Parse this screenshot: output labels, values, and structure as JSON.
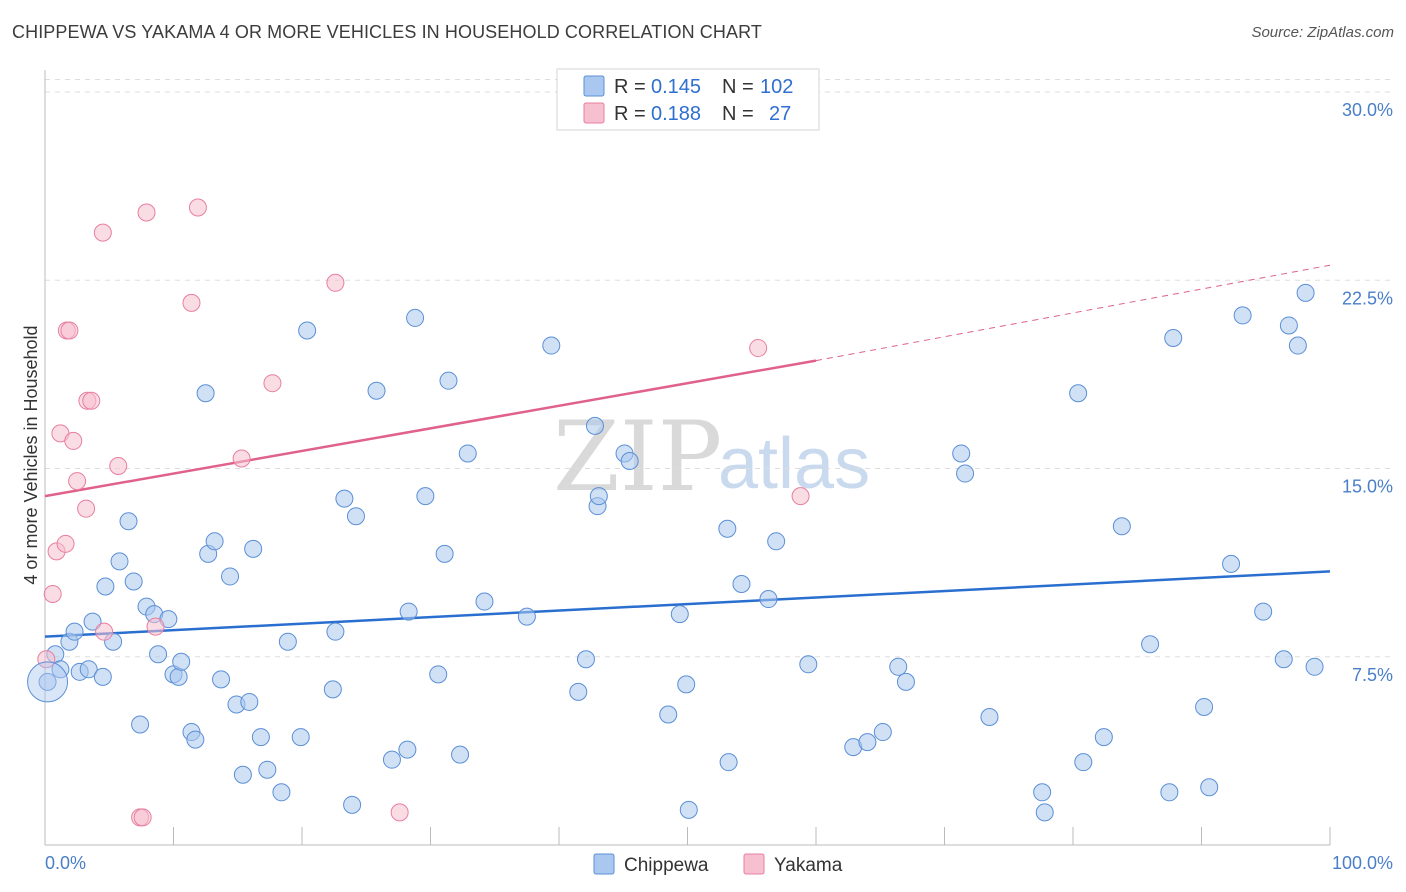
{
  "title": "CHIPPEWA VS YAKAMA 4 OR MORE VEHICLES IN HOUSEHOLD CORRELATION CHART",
  "source": "Source: ZipAtlas.com",
  "watermark": {
    "zip": "ZIP",
    "atlas": "atlas"
  },
  "colors": {
    "chippewa_fill": "#aac8ef",
    "chippewa_stroke": "#5b8fd6",
    "chippewa_line": "#2a6fd0",
    "yakama_fill": "#f6c0d0",
    "yakama_stroke": "#e87fa0",
    "yakama_line": "#e0618a",
    "tick_text": "#4a7fc8",
    "grid": "#dddddd"
  },
  "legend": {
    "rows": [
      {
        "r_label": "R =",
        "r_value": "0.145",
        "n_label": "N =",
        "n_value": "102"
      },
      {
        "r_label": "R =",
        "r_value": "0.188",
        "n_label": "N =",
        "n_value": "27"
      }
    ]
  },
  "bottom_legend": [
    "Chippewa",
    "Yakama"
  ],
  "chart_data": {
    "type": "scatter",
    "title": "CHIPPEWA VS YAKAMA 4 OR MORE VEHICLES IN HOUSEHOLD CORRELATION CHART",
    "xlabel": "",
    "ylabel": "4 or more Vehicles in Household",
    "xlim": [
      0,
      100
    ],
    "ylim": [
      0,
      30.5
    ],
    "x_tick_labels": [
      "0.0%",
      "100.0%"
    ],
    "y_ticks": [
      7.5,
      15.0,
      22.5,
      30.0
    ],
    "y_tick_labels": [
      "7.5%",
      "15.0%",
      "22.5%",
      "30.0%"
    ],
    "series": [
      {
        "name": "Chippewa",
        "r": 0.145,
        "n": 102,
        "trend": {
          "x0": 0,
          "y0": 8.3,
          "x1": 100,
          "y1": 10.9
        },
        "points": [
          [
            0.2,
            6.5
          ],
          [
            0.8,
            7.6
          ],
          [
            1.2,
            7.0
          ],
          [
            1.9,
            8.1
          ],
          [
            2.3,
            8.5
          ],
          [
            2.7,
            6.9
          ],
          [
            3.4,
            7.0
          ],
          [
            3.7,
            8.9
          ],
          [
            4.5,
            6.7
          ],
          [
            4.7,
            10.3
          ],
          [
            5.3,
            8.1
          ],
          [
            5.8,
            11.3
          ],
          [
            6.5,
            12.9
          ],
          [
            6.9,
            10.5
          ],
          [
            7.4,
            4.8
          ],
          [
            7.9,
            9.5
          ],
          [
            8.5,
            9.2
          ],
          [
            8.8,
            7.6
          ],
          [
            9.6,
            9.0
          ],
          [
            10.0,
            6.8
          ],
          [
            10.4,
            6.7
          ],
          [
            10.6,
            7.3
          ],
          [
            11.4,
            4.5
          ],
          [
            11.7,
            4.2
          ],
          [
            12.5,
            18.0
          ],
          [
            12.7,
            11.6
          ],
          [
            13.2,
            12.1
          ],
          [
            13.7,
            6.6
          ],
          [
            14.4,
            10.7
          ],
          [
            14.9,
            5.6
          ],
          [
            15.4,
            2.8
          ],
          [
            15.9,
            5.7
          ],
          [
            16.2,
            11.8
          ],
          [
            16.8,
            4.3
          ],
          [
            17.3,
            3.0
          ],
          [
            18.4,
            2.1
          ],
          [
            18.9,
            8.1
          ],
          [
            19.9,
            4.3
          ],
          [
            20.4,
            20.5
          ],
          [
            22.4,
            6.2
          ],
          [
            22.6,
            8.5
          ],
          [
            23.3,
            13.8
          ],
          [
            23.9,
            1.6
          ],
          [
            24.2,
            13.1
          ],
          [
            25.8,
            18.1
          ],
          [
            27.0,
            3.4
          ],
          [
            28.2,
            3.8
          ],
          [
            28.3,
            9.3
          ],
          [
            28.8,
            21.0
          ],
          [
            29.6,
            13.9
          ],
          [
            30.6,
            6.8
          ],
          [
            31.1,
            11.6
          ],
          [
            31.4,
            18.5
          ],
          [
            32.3,
            3.6
          ],
          [
            32.9,
            15.6
          ],
          [
            34.2,
            9.7
          ],
          [
            37.5,
            9.1
          ],
          [
            39.4,
            19.9
          ],
          [
            41.5,
            6.1
          ],
          [
            42.1,
            7.4
          ],
          [
            42.8,
            16.7
          ],
          [
            43.0,
            13.5
          ],
          [
            43.1,
            13.9
          ],
          [
            45.1,
            15.6
          ],
          [
            45.5,
            15.3
          ],
          [
            48.5,
            5.2
          ],
          [
            49.4,
            9.2
          ],
          [
            49.9,
            6.4
          ],
          [
            50.1,
            1.4
          ],
          [
            53.1,
            12.6
          ],
          [
            53.2,
            3.3
          ],
          [
            54.2,
            10.4
          ],
          [
            56.3,
            9.8
          ],
          [
            56.9,
            12.1
          ],
          [
            59.4,
            7.2
          ],
          [
            62.9,
            3.9
          ],
          [
            64.0,
            4.1
          ],
          [
            65.2,
            4.5
          ],
          [
            66.4,
            7.1
          ],
          [
            67.0,
            6.5
          ],
          [
            71.3,
            15.6
          ],
          [
            71.6,
            14.8
          ],
          [
            73.5,
            5.1
          ],
          [
            77.6,
            2.1
          ],
          [
            77.8,
            1.3
          ],
          [
            80.4,
            18.0
          ],
          [
            80.8,
            3.3
          ],
          [
            82.4,
            4.3
          ],
          [
            83.8,
            12.7
          ],
          [
            86.0,
            8.0
          ],
          [
            87.5,
            2.1
          ],
          [
            87.8,
            20.2
          ],
          [
            90.2,
            5.5
          ],
          [
            90.6,
            2.3
          ],
          [
            92.3,
            11.2
          ],
          [
            93.2,
            21.1
          ],
          [
            94.8,
            9.3
          ],
          [
            96.4,
            7.4
          ],
          [
            96.8,
            20.7
          ],
          [
            97.5,
            19.9
          ],
          [
            98.1,
            22.0
          ],
          [
            98.8,
            7.1
          ]
        ]
      },
      {
        "name": "Yakama",
        "r": 0.188,
        "n": 27,
        "trend": {
          "x0": 0,
          "y0": 13.9,
          "x1": 60,
          "y1": 19.3,
          "dashed_to_x": 100,
          "dashed_to_y": 23.1
        },
        "points": [
          [
            0.1,
            7.4
          ],
          [
            0.6,
            10.0
          ],
          [
            0.9,
            11.7
          ],
          [
            1.2,
            16.4
          ],
          [
            1.6,
            12.0
          ],
          [
            1.7,
            20.5
          ],
          [
            1.9,
            20.5
          ],
          [
            2.2,
            16.1
          ],
          [
            2.5,
            14.5
          ],
          [
            3.2,
            13.4
          ],
          [
            3.3,
            17.7
          ],
          [
            3.6,
            17.7
          ],
          [
            4.5,
            24.4
          ],
          [
            4.6,
            8.5
          ],
          [
            5.7,
            15.1
          ],
          [
            7.4,
            1.1
          ],
          [
            7.6,
            1.1
          ],
          [
            7.9,
            25.2
          ],
          [
            8.6,
            8.7
          ],
          [
            11.4,
            21.6
          ],
          [
            11.9,
            25.4
          ],
          [
            15.3,
            15.4
          ],
          [
            17.7,
            18.4
          ],
          [
            22.6,
            22.4
          ],
          [
            27.6,
            1.3
          ],
          [
            55.5,
            19.8
          ],
          [
            58.8,
            13.9
          ]
        ]
      }
    ]
  }
}
